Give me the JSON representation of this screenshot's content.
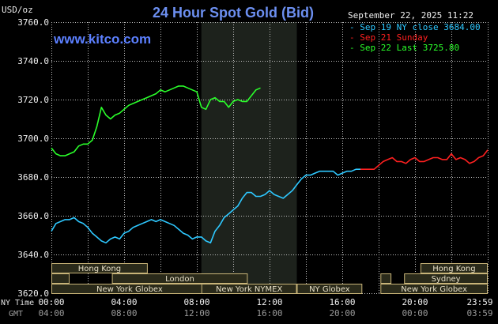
{
  "chart_data": {
    "type": "line",
    "title": "24 Hour Spot Gold (Bid)",
    "unit_label": "USD/oz",
    "watermark": "www.kitco.com",
    "timestamp": "September 22, 2025 11:22",
    "ylim": [
      3620,
      3760
    ],
    "y_ticks": [
      "3760.0",
      "3740.0",
      "3720.0",
      "3700.0",
      "3680.0",
      "3660.0",
      "3640.0",
      "3620.0"
    ],
    "x_row_labels": {
      "primary": "NY Time",
      "secondary": "GMT"
    },
    "x_ticks_ny": [
      "00:00",
      "04:00",
      "08:00",
      "12:00",
      "16:00",
      "20:00",
      "23:59"
    ],
    "x_ticks_gmt": [
      "04:00",
      "08:00",
      "12:00",
      "16:00",
      "20:00",
      "00:00",
      "03:59"
    ],
    "colors": {
      "background": "#000000",
      "grid": "#bfbfbf",
      "title": "#6c8ff0",
      "watermark": "#5c80ff",
      "nymex_band": "#1d221c",
      "session_box": "#2a2a1a",
      "session_border": "#c8b478"
    },
    "legend": [
      {
        "label": "Sep 19 NY close 3684.00",
        "color": "#2ec8ff"
      },
      {
        "label": "Sep 21 Sunday",
        "color": "#ff2020"
      },
      {
        "label": "Sep 22 Last 3725.80",
        "color": "#2aff2a"
      }
    ],
    "highlight_band": {
      "x": [
        8.25,
        13.5
      ]
    },
    "sessions": [
      {
        "name": "Hong Kong",
        "x": [
          0,
          5.3
        ],
        "row": 0
      },
      {
        "name": "London",
        "x": [
          3.33,
          10.8
        ],
        "row": 1
      },
      {
        "name": "New York Globex",
        "x": [
          0,
          8.6
        ],
        "row": 2
      },
      {
        "name": "New York NYMEX",
        "x": [
          8.25,
          13.5
        ],
        "row": 2
      },
      {
        "name": "NY Globex",
        "x": [
          13.5,
          17.1
        ],
        "row": 2
      },
      {
        "name": "Hong Kong",
        "x": [
          20.3,
          24
        ],
        "row": 0
      },
      {
        "name": "Sydney",
        "x": [
          19.4,
          24
        ],
        "row": 1
      },
      {
        "name": "New York Globex",
        "x": [
          18.1,
          24
        ],
        "row": 2
      },
      {
        "name": "",
        "x": [
          0,
          1.0
        ],
        "row": 1
      },
      {
        "name": "",
        "x": [
          18.1,
          18.7
        ],
        "row": 1
      }
    ],
    "series": [
      {
        "name": "Sep 19 NY close 3684.00",
        "color": "#2ec8ff",
        "x": [
          0.0,
          0.25,
          0.5,
          0.75,
          1.0,
          1.25,
          1.5,
          1.75,
          2.0,
          2.25,
          2.5,
          2.75,
          3.0,
          3.25,
          3.5,
          3.75,
          4.0,
          4.25,
          4.5,
          4.75,
          5.0,
          5.25,
          5.5,
          5.75,
          6.0,
          6.25,
          6.5,
          6.75,
          7.0,
          7.25,
          7.5,
          7.75,
          8.0,
          8.25,
          8.5,
          8.75,
          9.0,
          9.25,
          9.5,
          9.75,
          10.0,
          10.25,
          10.5,
          10.75,
          11.0,
          11.25,
          11.5,
          11.75,
          12.0,
          12.25,
          12.5,
          12.75,
          13.0,
          13.25,
          13.5,
          13.75,
          14.0,
          14.25,
          14.5,
          14.75,
          15.0,
          15.25,
          15.5,
          15.75,
          16.0,
          16.25,
          16.5,
          16.75,
          17.0
        ],
        "values": [
          3652,
          3656,
          3657,
          3658,
          3658,
          3659,
          3657,
          3656,
          3654,
          3651,
          3649,
          3647,
          3646,
          3648,
          3649,
          3648,
          3651,
          3652,
          3654,
          3655,
          3656,
          3657,
          3658,
          3657,
          3658,
          3657,
          3656,
          3655,
          3653,
          3651,
          3650,
          3648,
          3649,
          3649,
          3647,
          3646,
          3652,
          3655,
          3659,
          3661,
          3663,
          3665,
          3669,
          3672,
          3672,
          3670,
          3670,
          3671,
          3673,
          3671,
          3670,
          3669,
          3671,
          3673,
          3676,
          3679,
          3681,
          3681,
          3682,
          3683,
          3683,
          3683,
          3683,
          3681,
          3682,
          3683,
          3683,
          3684,
          3684
        ]
      },
      {
        "name": "Sep 21 Sunday",
        "color": "#ff2020",
        "x": [
          17.0,
          17.25,
          17.5,
          17.75,
          18.0,
          18.25,
          18.5,
          18.75,
          19.0,
          19.25,
          19.5,
          19.75,
          20.0,
          20.25,
          20.5,
          20.75,
          21.0,
          21.25,
          21.5,
          21.75,
          22.0,
          22.25,
          22.5,
          22.75,
          23.0,
          23.25,
          23.5,
          23.75,
          24.0
        ],
        "values": [
          3684,
          3684,
          3684,
          3684,
          3686,
          3688,
          3689,
          3690,
          3688,
          3688,
          3687,
          3689,
          3690,
          3688,
          3688,
          3689,
          3690,
          3690,
          3689,
          3689,
          3692,
          3689,
          3690,
          3689,
          3687,
          3688,
          3690,
          3691,
          3694
        ]
      },
      {
        "name": "Sep 22 Last 3725.80",
        "color": "#2aff2a",
        "x": [
          0.0,
          0.25,
          0.5,
          0.75,
          1.0,
          1.25,
          1.5,
          1.75,
          2.0,
          2.25,
          2.5,
          2.75,
          3.0,
          3.25,
          3.5,
          3.75,
          4.0,
          4.25,
          4.5,
          4.75,
          5.0,
          5.25,
          5.5,
          5.75,
          6.0,
          6.25,
          6.5,
          6.75,
          7.0,
          7.25,
          7.5,
          7.75,
          8.0,
          8.25,
          8.5,
          8.75,
          9.0,
          9.25,
          9.5,
          9.75,
          10.0,
          10.25,
          10.5,
          10.75,
          11.0,
          11.25,
          11.5
        ],
        "values": [
          3695,
          3692,
          3691,
          3691,
          3692,
          3693,
          3696,
          3697,
          3697,
          3699,
          3706,
          3716,
          3712,
          3710,
          3712,
          3713,
          3715,
          3717,
          3718,
          3719,
          3720,
          3721,
          3722,
          3723,
          3725,
          3724,
          3725,
          3726,
          3727,
          3727,
          3726,
          3725,
          3724,
          3716,
          3715,
          3720,
          3721,
          3719,
          3719,
          3716,
          3719,
          3720,
          3719,
          3719,
          3722,
          3725,
          3726
        ]
      }
    ]
  }
}
